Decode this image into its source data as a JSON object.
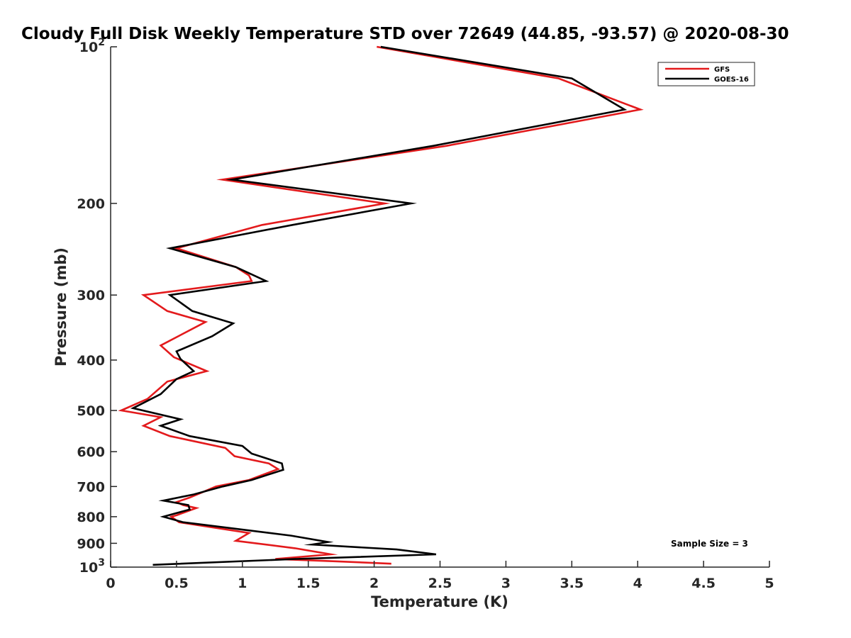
{
  "chart_data": {
    "type": "line",
    "title": "Cloudy Full Disk Weekly Temperature STD over 72649 (44.85, -93.57) @ 2020-08-30",
    "xlabel": "Temperature (K)",
    "ylabel": "Pressure (mb)",
    "xlim": [
      0,
      5
    ],
    "ylim": [
      100,
      1000
    ],
    "y_scale": "log",
    "y_reversed": true,
    "x_ticks": [
      0,
      0.5,
      1,
      1.5,
      2,
      2.5,
      3,
      3.5,
      4,
      4.5,
      5
    ],
    "x_tick_labels": [
      "0",
      "0.5",
      "1",
      "1.5",
      "2",
      "2.5",
      "3",
      "3.5",
      "4",
      "4.5",
      "5"
    ],
    "y_ticks": [
      {
        "value": 100,
        "label": "10",
        "sup": "2"
      },
      {
        "value": 200,
        "label": "200",
        "sup": ""
      },
      {
        "value": 300,
        "label": "300",
        "sup": ""
      },
      {
        "value": 400,
        "label": "400",
        "sup": ""
      },
      {
        "value": 500,
        "label": "500",
        "sup": ""
      },
      {
        "value": 600,
        "label": "600",
        "sup": ""
      },
      {
        "value": 700,
        "label": "700",
        "sup": ""
      },
      {
        "value": 800,
        "label": "800",
        "sup": ""
      },
      {
        "value": 900,
        "label": "900",
        "sup": ""
      },
      {
        "value": 1000,
        "label": "10",
        "sup": "3"
      }
    ],
    "grid": false,
    "legend_position": "top-right",
    "annotation": "Sample Size = 3",
    "series": [
      {
        "name": "GFS",
        "color": "#e31a1c",
        "points": [
          [
            2.02,
            100
          ],
          [
            3.4,
            115
          ],
          [
            4.02,
            132
          ],
          [
            2.55,
            155
          ],
          [
            0.85,
            180
          ],
          [
            2.08,
            200
          ],
          [
            1.15,
            220
          ],
          [
            0.5,
            244
          ],
          [
            0.95,
            265
          ],
          [
            1.05,
            275
          ],
          [
            1.07,
            282
          ],
          [
            0.25,
            300
          ],
          [
            0.43,
            322
          ],
          [
            0.72,
            338
          ],
          [
            0.38,
            375
          ],
          [
            0.48,
            395
          ],
          [
            0.73,
            420
          ],
          [
            0.43,
            440
          ],
          [
            0.28,
            475
          ],
          [
            0.08,
            500
          ],
          [
            0.38,
            515
          ],
          [
            0.25,
            535
          ],
          [
            0.45,
            560
          ],
          [
            0.87,
            590
          ],
          [
            0.94,
            612
          ],
          [
            1.2,
            632
          ],
          [
            1.27,
            648
          ],
          [
            1.05,
            680
          ],
          [
            0.8,
            700
          ],
          [
            0.6,
            735
          ],
          [
            0.5,
            750
          ],
          [
            0.55,
            760
          ],
          [
            0.65,
            770
          ],
          [
            0.5,
            795
          ],
          [
            0.46,
            800
          ],
          [
            0.52,
            820
          ],
          [
            1.05,
            860
          ],
          [
            0.95,
            890
          ],
          [
            1.4,
            920
          ],
          [
            1.67,
            945
          ],
          [
            1.25,
            965
          ],
          [
            1.72,
            975
          ],
          [
            2.13,
            985
          ]
        ]
      },
      {
        "name": "GOES-16",
        "color": "#000000",
        "points": [
          [
            2.05,
            100
          ],
          [
            3.5,
            115
          ],
          [
            3.9,
            132
          ],
          [
            2.45,
            155
          ],
          [
            0.92,
            180
          ],
          [
            2.28,
            200
          ],
          [
            1.38,
            220
          ],
          [
            0.45,
            244
          ],
          [
            0.95,
            265
          ],
          [
            1.18,
            282
          ],
          [
            0.45,
            300
          ],
          [
            0.62,
            322
          ],
          [
            0.93,
            340
          ],
          [
            0.77,
            360
          ],
          [
            0.5,
            385
          ],
          [
            0.53,
            398
          ],
          [
            0.63,
            420
          ],
          [
            0.5,
            435
          ],
          [
            0.38,
            465
          ],
          [
            0.17,
            495
          ],
          [
            0.53,
            520
          ],
          [
            0.38,
            535
          ],
          [
            0.6,
            560
          ],
          [
            1.0,
            585
          ],
          [
            1.07,
            605
          ],
          [
            1.3,
            632
          ],
          [
            1.31,
            650
          ],
          [
            1.07,
            680
          ],
          [
            0.85,
            700
          ],
          [
            0.63,
            725
          ],
          [
            0.4,
            745
          ],
          [
            0.59,
            760
          ],
          [
            0.6,
            775
          ],
          [
            0.4,
            800
          ],
          [
            0.55,
            820
          ],
          [
            1.37,
            870
          ],
          [
            1.65,
            895
          ],
          [
            1.53,
            905
          ],
          [
            2.17,
            925
          ],
          [
            2.47,
            945
          ],
          [
            1.4,
            965
          ],
          [
            0.32,
            990
          ]
        ]
      }
    ]
  }
}
